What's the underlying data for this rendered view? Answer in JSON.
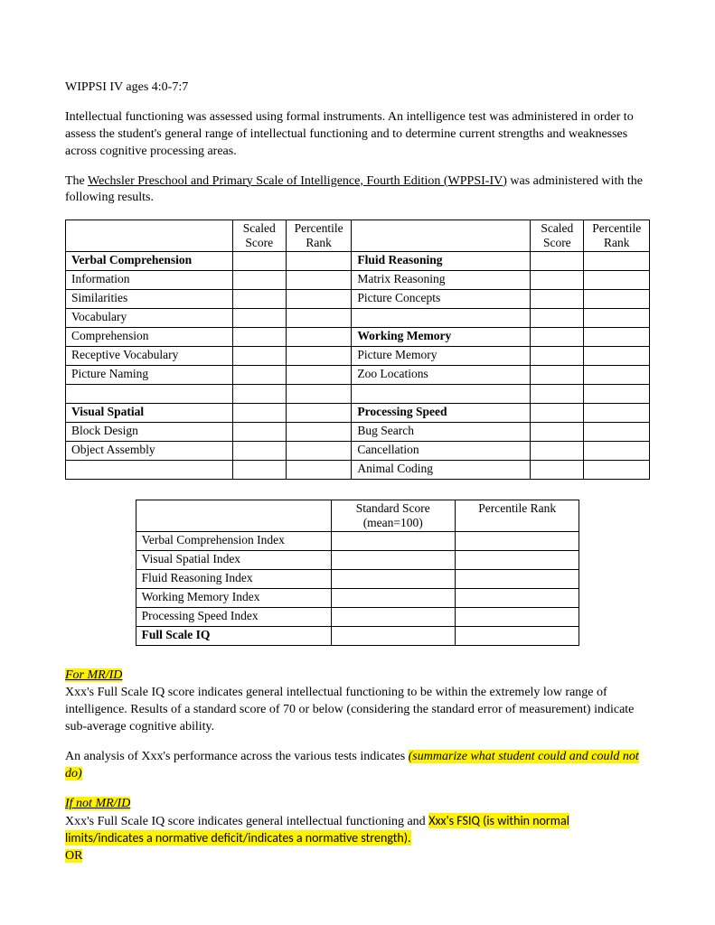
{
  "title_line": "WIPPSI IV ages 4:0-7:7",
  "intro_para": "Intellectual functioning was assessed using formal instruments.  An intelligence test was administered in order to assess the student's general range of intellectual functioning and to determine current strengths and weaknesses across cognitive processing areas.",
  "admin_prefix": "The ",
  "admin_link": "Wechsler Preschool and Primary Scale of Intelligence, Fourth Edition (WPPSI-IV)",
  "admin_suffix": " was administered with the following results.",
  "headers": {
    "scaled": "Scaled Score",
    "percentile": "Percentile Rank"
  },
  "table1_left": [
    {
      "label": "Verbal Comprehension",
      "bold": true
    },
    {
      "label": "Information"
    },
    {
      "label": "Similarities"
    },
    {
      "label": "Vocabulary"
    },
    {
      "label": "Comprehension"
    },
    {
      "label": "Receptive Vocabulary"
    },
    {
      "label": "Picture Naming"
    },
    {
      "label": ""
    },
    {
      "label": "Visual Spatial",
      "bold": true
    },
    {
      "label": "Block Design"
    },
    {
      "label": "Object Assembly"
    },
    {
      "label": ""
    }
  ],
  "table1_right": [
    {
      "label": "Fluid Reasoning",
      "bold": true
    },
    {
      "label": "Matrix Reasoning"
    },
    {
      "label": "Picture Concepts"
    },
    {
      "label": ""
    },
    {
      "label": "Working Memory",
      "bold": true
    },
    {
      "label": "Picture Memory"
    },
    {
      "label": "Zoo Locations"
    },
    {
      "label": ""
    },
    {
      "label": "Processing Speed",
      "bold": true
    },
    {
      "label": "Bug Search"
    },
    {
      "label": "Cancellation"
    },
    {
      "label": "Animal Coding"
    }
  ],
  "table2_headers": {
    "standard": "Standard Score (mean=100)",
    "percentile": "Percentile Rank"
  },
  "table2_rows": [
    {
      "label": "Verbal Comprehension Index"
    },
    {
      "label": "Visual Spatial Index"
    },
    {
      "label": "Fluid Reasoning Index"
    },
    {
      "label": "Working Memory Index"
    },
    {
      "label": "Processing Speed Index"
    },
    {
      "label": "Full Scale IQ",
      "bold": true
    }
  ],
  "mrid_label": "For MR/ID",
  "mrid_para": "Xxx's Full Scale IQ score indicates general intellectual functioning to be within the extremely low range of intelligence.  Results of a standard score of 70 or below (considering the standard error of measurement) indicate sub-average cognitive ability.",
  "analysis_prefix": "An analysis of Xxx's performance across the various tests indicates ",
  "analysis_highlight": "(summarize what student could and could not do)",
  "not_mrid_label": "If not MR/ID",
  "not_mrid_prefix": "Xxx's Full Scale IQ score indicates general intellectual functioning and ",
  "not_mrid_highlight": "Xxx's FSIQ (is within normal limits/indicates a normative deficit/indicates a normative strength).",
  "or_text": " OR"
}
